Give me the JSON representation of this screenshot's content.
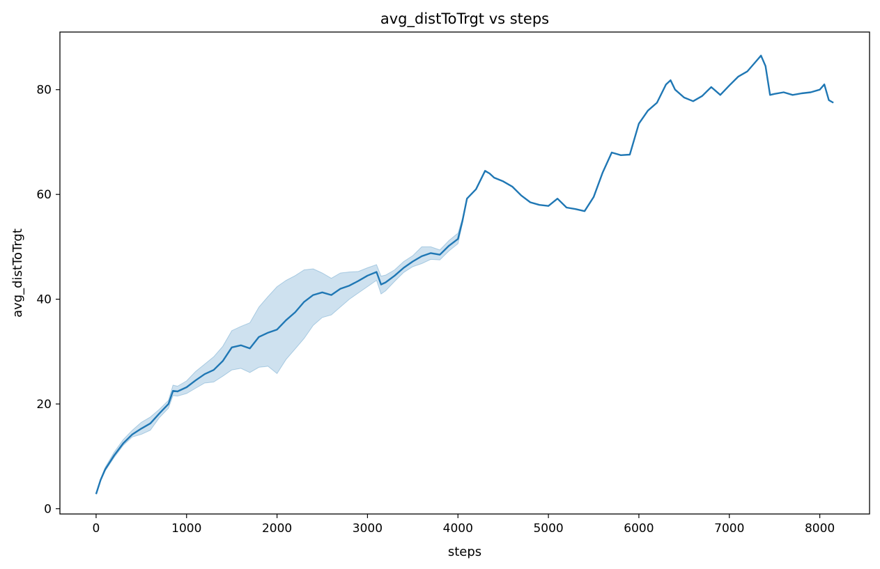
{
  "chart_data": {
    "type": "line",
    "title": "avg_distToTrgt vs steps",
    "xlabel": "steps",
    "ylabel": "avg_distToTrgt",
    "xlim": [
      -400,
      8550
    ],
    "ylim": [
      -1,
      91
    ],
    "xticks": [
      0,
      1000,
      2000,
      3000,
      4000,
      5000,
      6000,
      7000,
      8000
    ],
    "yticks": [
      0,
      20,
      40,
      60,
      80
    ],
    "grid": false,
    "line_color": "#1f77b4",
    "band_color": "#1f77b4",
    "series": [
      {
        "x": [
          0,
          50,
          100,
          200,
          300,
          400,
          500,
          600,
          700,
          800,
          850,
          900,
          1000,
          1100,
          1200,
          1300,
          1400,
          1500,
          1600,
          1700,
          1800,
          1900,
          2000,
          2100,
          2200,
          2300,
          2400,
          2500,
          2600,
          2700,
          2800,
          2900,
          3000,
          3100,
          3150,
          3200,
          3300,
          3400,
          3500,
          3600,
          3700,
          3800,
          3900,
          4000,
          4050,
          4100,
          4200,
          4300,
          4350,
          4400,
          4500,
          4600,
          4700,
          4800,
          4900,
          5000,
          5100,
          5200,
          5300,
          5400,
          5500,
          5600,
          5700,
          5800,
          5900,
          6000,
          6100,
          6200,
          6300,
          6350,
          6400,
          6500,
          6600,
          6700,
          6800,
          6900,
          7000,
          7100,
          7200,
          7300,
          7350,
          7400,
          7450,
          7500,
          7600,
          7700,
          7800,
          7900,
          8000,
          8050,
          8100,
          8150
        ],
        "y": [
          2.8,
          5.5,
          7.5,
          10.2,
          12.5,
          14.2,
          15.3,
          16.3,
          18.2,
          20.0,
          22.5,
          22.4,
          23.2,
          24.5,
          25.7,
          26.5,
          28.2,
          30.8,
          31.2,
          30.6,
          32.8,
          33.6,
          34.2,
          36.0,
          37.5,
          39.5,
          40.8,
          41.3,
          40.8,
          42.0,
          42.6,
          43.5,
          44.5,
          45.2,
          42.8,
          43.2,
          44.5,
          46.0,
          47.2,
          48.2,
          48.8,
          48.5,
          50.2,
          51.5,
          55.0,
          59.2,
          61.0,
          64.5,
          64.0,
          63.2,
          62.5,
          61.5,
          59.8,
          58.5,
          58.0,
          57.8,
          59.2,
          57.5,
          57.2,
          56.8,
          59.5,
          64.2,
          68.0,
          67.5,
          67.6,
          73.5,
          76.0,
          77.5,
          81.0,
          81.8,
          80.0,
          78.5,
          77.8,
          78.8,
          80.5,
          79.0,
          80.8,
          82.5,
          83.5,
          85.5,
          86.5,
          84.5,
          79.0,
          79.2,
          79.5,
          79.0,
          79.3,
          79.5,
          80.0,
          81.0,
          78.0,
          77.5
        ],
        "y_low": [
          2.8,
          5.3,
          7.2,
          9.8,
          12.1,
          13.7,
          14.2,
          15.0,
          17.4,
          19.2,
          21.6,
          21.5,
          22.0,
          23.0,
          24.0,
          24.2,
          25.3,
          26.5,
          26.8,
          26.0,
          27.0,
          27.2,
          25.8,
          28.5,
          30.5,
          32.5,
          35.0,
          36.5,
          37.0,
          38.5,
          40.0,
          41.2,
          42.4,
          43.6,
          41.0,
          41.6,
          43.4,
          45.1,
          46.2,
          46.8,
          47.6,
          47.5,
          49.2,
          50.6,
          54.5,
          59.2,
          61.0,
          64.5,
          64.0,
          63.2,
          62.5,
          61.5,
          59.8,
          58.5,
          58.0,
          57.8,
          59.2,
          57.5,
          57.2,
          56.8,
          59.5,
          64.2,
          68.0,
          67.5,
          67.6,
          73.5,
          76.0,
          77.5,
          81.0,
          81.8,
          80.0,
          78.5,
          77.8,
          78.8,
          80.5,
          79.0,
          80.8,
          82.5,
          83.5,
          85.5,
          86.5,
          84.5,
          79.0,
          79.2,
          79.5,
          79.0,
          79.3,
          79.5,
          80.0,
          81.0,
          78.0,
          77.5
        ],
        "y_high": [
          2.8,
          5.7,
          7.9,
          10.8,
          13.2,
          15.0,
          16.5,
          17.5,
          19.0,
          20.7,
          23.6,
          23.4,
          24.4,
          26.2,
          27.6,
          29.0,
          31.0,
          34.0,
          34.8,
          35.5,
          38.5,
          40.5,
          42.4,
          43.6,
          44.5,
          45.6,
          45.8,
          45.0,
          44.0,
          45.0,
          45.2,
          45.3,
          46.0,
          46.6,
          44.4,
          44.6,
          45.6,
          47.2,
          48.3,
          50.0,
          50.0,
          49.4,
          51.2,
          52.6,
          55.5,
          59.2,
          61.0,
          64.5,
          64.0,
          63.2,
          62.5,
          61.5,
          59.8,
          58.5,
          58.0,
          57.8,
          59.2,
          57.5,
          57.2,
          56.8,
          59.5,
          64.2,
          68.0,
          67.5,
          67.6,
          73.5,
          76.0,
          77.5,
          81.0,
          81.8,
          80.0,
          78.5,
          77.8,
          78.8,
          80.5,
          79.0,
          80.8,
          82.5,
          83.5,
          85.5,
          86.5,
          84.5,
          79.0,
          79.2,
          79.5,
          79.0,
          79.3,
          79.5,
          80.0,
          81.0,
          78.0,
          77.5
        ]
      }
    ]
  }
}
